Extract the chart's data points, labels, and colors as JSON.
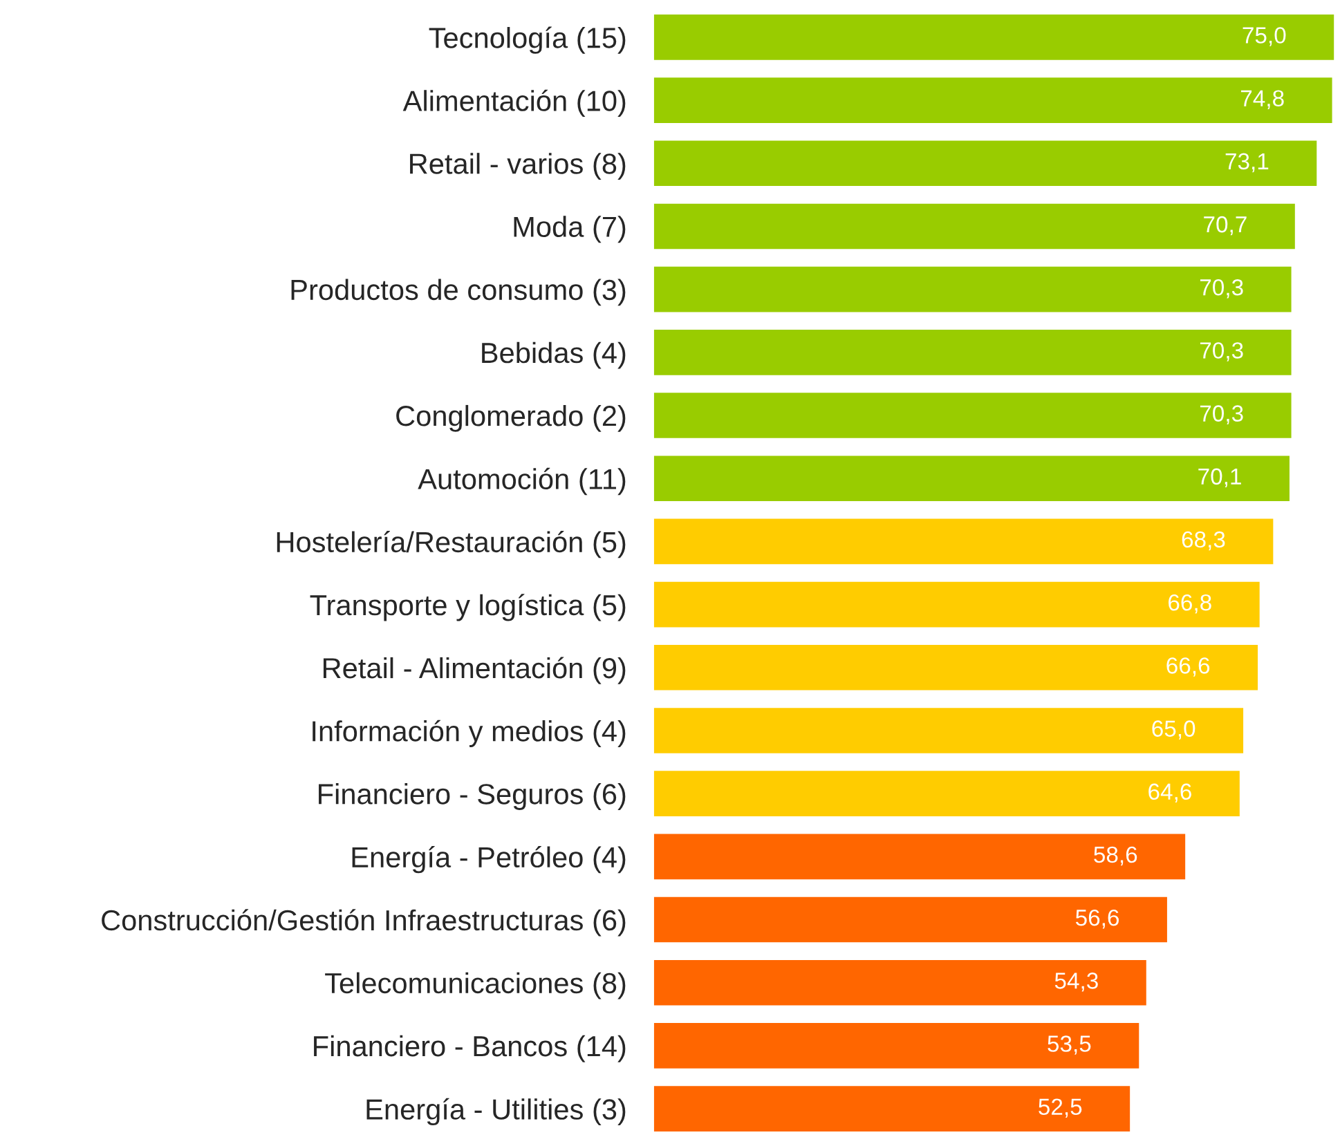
{
  "chart_data": {
    "type": "bar",
    "orientation": "horizontal",
    "categories": [
      "Tecnología (15)",
      "Alimentación (10)",
      "Retail - varios (8)",
      "Moda (7)",
      "Productos de consumo (3)",
      "Bebidas (4)",
      "Conglomerado (2)",
      "Automoción (11)",
      "Hostelería/Restauración (5)",
      "Transporte y logística (5)",
      "Retail - Alimentación (9)",
      "Información y medios (4)",
      "Financiero - Seguros (6)",
      "Energía - Petróleo (4)",
      "Construcción/Gestión Infraestructuras (6)",
      "Telecomunicaciones (8)",
      "Financiero - Bancos (14)",
      "Energía - Utilities (3)"
    ],
    "values": [
      75.0,
      74.8,
      73.1,
      70.7,
      70.3,
      70.3,
      70.3,
      70.1,
      68.3,
      66.8,
      66.6,
      65.0,
      64.6,
      58.6,
      56.6,
      54.3,
      53.5,
      52.5
    ],
    "value_labels": [
      "75,0",
      "74,8",
      "73,1",
      "70,7",
      "70,3",
      "70,3",
      "70,3",
      "70,1",
      "68,3",
      "66,8",
      "66,6",
      "65,0",
      "64,6",
      "58,6",
      "56,6",
      "54,3",
      "53,5",
      "52,5"
    ],
    "colors": [
      "#99cc00",
      "#99cc00",
      "#99cc00",
      "#99cc00",
      "#99cc00",
      "#99cc00",
      "#99cc00",
      "#99cc00",
      "#ffcc00",
      "#ffcc00",
      "#ffcc00",
      "#ffcc00",
      "#ffcc00",
      "#ff6600",
      "#ff6600",
      "#ff6600",
      "#ff6600",
      "#ff6600"
    ],
    "tick_labels": "y",
    "grid": false,
    "legend": false
  }
}
